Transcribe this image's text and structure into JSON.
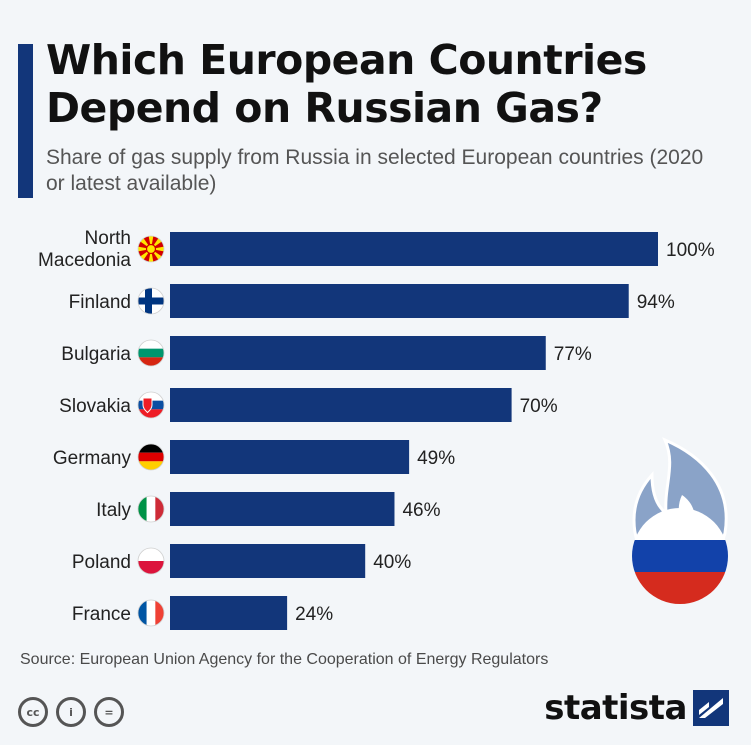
{
  "header": {
    "title_line1": "Which European Countries",
    "title_line2": "Depend on Russian Gas?",
    "subtitle": "Share of gas supply from Russia in selected European countries (2020 or latest available)"
  },
  "chart_data": {
    "type": "bar",
    "orientation": "horizontal",
    "title": "Which European Countries Depend on Russian Gas?",
    "subtitle": "Share of gas supply from Russia in selected European countries (2020 or latest available)",
    "categories": [
      "North Macedonia",
      "Finland",
      "Bulgaria",
      "Slovakia",
      "Germany",
      "Italy",
      "Poland",
      "France"
    ],
    "category_lines": [
      [
        "North",
        "Macedonia"
      ],
      [
        "Finland"
      ],
      [
        "Bulgaria"
      ],
      [
        "Slovakia"
      ],
      [
        "Germany"
      ],
      [
        "Italy"
      ],
      [
        "Poland"
      ],
      [
        "France"
      ]
    ],
    "values": [
      100,
      94,
      77,
      70,
      49,
      46,
      40,
      24
    ],
    "value_labels": [
      "100%",
      "94%",
      "77%",
      "70%",
      "49%",
      "46%",
      "40%",
      "24%"
    ],
    "flags": [
      "mk",
      "fi",
      "bg",
      "sk",
      "de",
      "it",
      "pl",
      "fr"
    ],
    "xlim": [
      0,
      100
    ],
    "grid": false,
    "legend": "none",
    "colors": {
      "bar": "#12367a",
      "flame": "#8aa3c8",
      "flame_outline": "#ffffff"
    }
  },
  "footer": {
    "source": "Source: European Union Agency for the Cooperation of Energy Regulators",
    "license_icons": [
      "cc-icon",
      "attribution-icon",
      "no-derivatives-icon"
    ],
    "license_glyphs": [
      "cc",
      "i",
      "="
    ],
    "logo_text": "statista"
  }
}
